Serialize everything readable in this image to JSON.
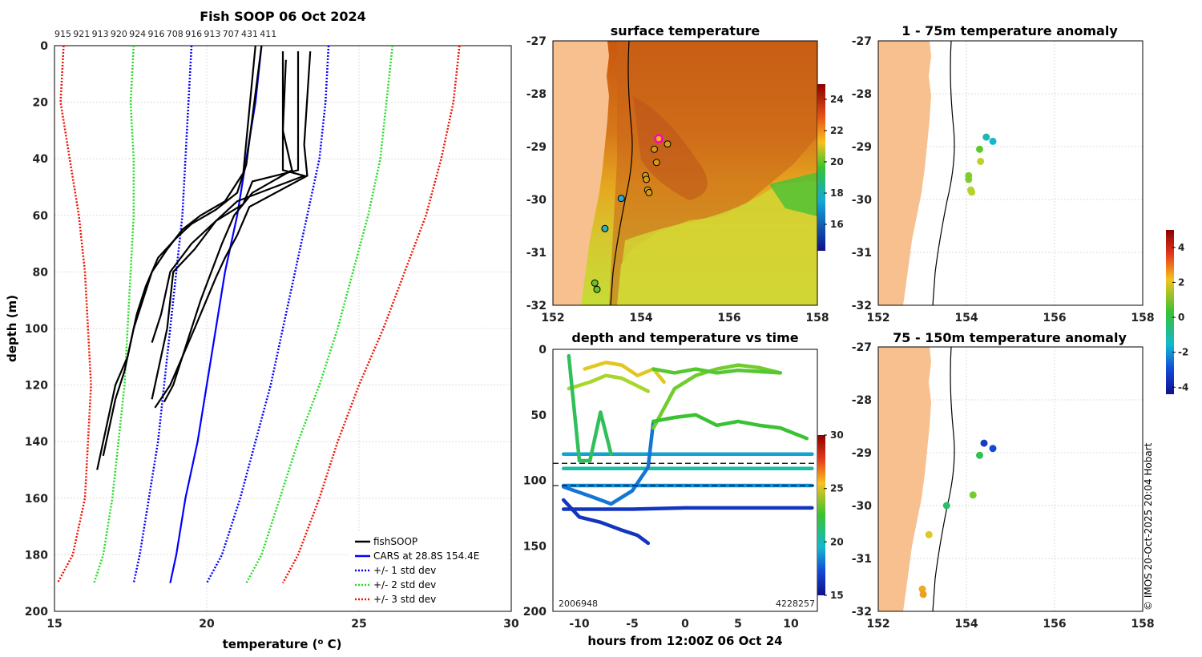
{
  "chart_data": [
    {
      "type": "line",
      "title": "Fish SOOP 06 Oct 2024",
      "xlabel": "temperature (",
      "xlabel_sup": "o",
      "xlabel_end": " C)",
      "ylabel": "depth (m)",
      "xlim": [
        15,
        30
      ],
      "ylim": [
        200,
        0
      ],
      "xticks": [
        "15",
        "20",
        "25",
        "30"
      ],
      "yticks": [
        "0",
        "20",
        "40",
        "60",
        "80",
        "100",
        "120",
        "140",
        "160",
        "180",
        "200"
      ],
      "top_labels": [
        "915",
        "921",
        "913",
        "920",
        "924",
        "916",
        "708",
        "916",
        "913",
        "707",
        "431",
        "411"
      ],
      "legend": [
        "fishSOOP",
        "CARS at 28.8S 154.4E",
        "+/- 1 std dev",
        "+/- 2 std dev",
        "+/- 3 std dev"
      ],
      "series": [
        {
          "name": "CARS mean",
          "depth": [
            0,
            20,
            40,
            60,
            80,
            100,
            120,
            140,
            160,
            180,
            190
          ],
          "temp": [
            21.8,
            21.6,
            21.3,
            21.0,
            20.6,
            20.3,
            20.0,
            19.7,
            19.3,
            19.0,
            18.8
          ]
        },
        {
          "name": "+1 std",
          "depth": [
            0,
            20,
            40,
            60,
            80,
            100,
            120,
            140,
            160,
            180,
            190
          ],
          "temp": [
            24.0,
            23.9,
            23.7,
            23.3,
            22.9,
            22.5,
            22.1,
            21.6,
            21.1,
            20.5,
            20.0
          ]
        },
        {
          "name": "-1 std",
          "depth": [
            0,
            20,
            40,
            60,
            80,
            100,
            120,
            140,
            160,
            180,
            190
          ],
          "temp": [
            19.5,
            19.4,
            19.3,
            19.2,
            19.0,
            18.8,
            18.6,
            18.4,
            18.1,
            17.8,
            17.6
          ]
        },
        {
          "name": "+2 std",
          "depth": [
            0,
            20,
            40,
            60,
            80,
            100,
            120,
            140,
            160,
            180,
            190
          ],
          "temp": [
            26.1,
            25.9,
            25.7,
            25.3,
            24.8,
            24.3,
            23.7,
            23.0,
            22.4,
            21.8,
            21.3
          ]
        },
        {
          "name": "-2 std",
          "depth": [
            0,
            20,
            40,
            60,
            80,
            100,
            120,
            140,
            160,
            180,
            190
          ],
          "temp": [
            17.6,
            17.5,
            17.6,
            17.6,
            17.5,
            17.4,
            17.3,
            17.1,
            16.9,
            16.6,
            16.3
          ]
        },
        {
          "name": "+3 std",
          "depth": [
            0,
            20,
            40,
            60,
            80,
            100,
            120,
            140,
            160,
            180,
            190
          ],
          "temp": [
            28.3,
            28.1,
            27.7,
            27.2,
            26.5,
            25.8,
            25.0,
            24.3,
            23.7,
            23.0,
            22.5
          ]
        },
        {
          "name": "-3 std",
          "depth": [
            0,
            20,
            40,
            60,
            80,
            100,
            120,
            140,
            160,
            180,
            190
          ],
          "temp": [
            15.3,
            15.2,
            15.5,
            15.8,
            16.0,
            16.1,
            16.2,
            16.1,
            16.0,
            15.6,
            15.1
          ]
        }
      ],
      "profiles": [
        {
          "depth": [
            0,
            42,
            52,
            58,
            63,
            68,
            75,
            85,
            95,
            110,
            120,
            130,
            140,
            150
          ],
          "temp": [
            21.8,
            21.3,
            21.0,
            20.3,
            19.5,
            19.0,
            18.4,
            18.0,
            17.7,
            17.4,
            17.0,
            16.8,
            16.6,
            16.4
          ]
        },
        {
          "depth": [
            0,
            45,
            55,
            60,
            65,
            72,
            80,
            90,
            100,
            115,
            125,
            135,
            145
          ],
          "temp": [
            21.6,
            21.2,
            20.6,
            19.8,
            19.2,
            18.7,
            18.2,
            17.9,
            17.6,
            17.3,
            17.0,
            16.8,
            16.6
          ]
        },
        {
          "depth": [
            2,
            44,
            46,
            55,
            60,
            70,
            80,
            95,
            105
          ],
          "temp": [
            22.5,
            22.5,
            23.2,
            21.0,
            20.5,
            19.5,
            18.8,
            18.5,
            18.2
          ]
        },
        {
          "depth": [
            2,
            44,
            48,
            56,
            62,
            72,
            80,
            100,
            115,
            125
          ],
          "temp": [
            23.0,
            23.0,
            21.5,
            21.2,
            20.3,
            19.6,
            18.9,
            18.7,
            18.4,
            18.2
          ]
        },
        {
          "depth": [
            2,
            35,
            46,
            57,
            67,
            75,
            82,
            100,
            120,
            128
          ],
          "temp": [
            23.4,
            23.2,
            23.3,
            21.4,
            21.0,
            20.6,
            20.3,
            19.6,
            18.8,
            18.3
          ]
        },
        {
          "depth": [
            5,
            30,
            44,
            52,
            60,
            70,
            90,
            110,
            120,
            126
          ],
          "temp": [
            22.6,
            22.5,
            22.8,
            21.5,
            20.9,
            20.5,
            19.8,
            19.2,
            18.9,
            18.6
          ]
        }
      ]
    },
    {
      "type": "heatmap",
      "title": "surface temperature",
      "xlim": [
        152,
        158
      ],
      "ylim": [
        -32,
        -27
      ],
      "xticks": [
        "152",
        "154",
        "156",
        "158"
      ],
      "yticks": [
        "-27",
        "-28",
        "-29",
        "-30",
        "-31",
        "-32"
      ],
      "colorbar_ticks": [
        "24",
        "22",
        "20",
        "18",
        "16"
      ],
      "stations": [
        {
          "lon": 154.4,
          "lat": -28.85,
          "color": "#f2ba10",
          "highlight": true
        },
        {
          "lon": 154.6,
          "lat": -28.95,
          "color": "#d79a14"
        },
        {
          "lon": 154.3,
          "lat": -29.05,
          "color": "#d79a14"
        },
        {
          "lon": 154.35,
          "lat": -29.3,
          "color": "#d79a14"
        },
        {
          "lon": 154.1,
          "lat": -29.55,
          "color": "#d79a14"
        },
        {
          "lon": 154.12,
          "lat": -29.62,
          "color": "#d79a14"
        },
        {
          "lon": 154.15,
          "lat": -29.82,
          "color": "#d79a14"
        },
        {
          "lon": 154.18,
          "lat": -29.87,
          "color": "#d79a14"
        },
        {
          "lon": 153.55,
          "lat": -29.98,
          "color": "#2aa8d8"
        },
        {
          "lon": 153.18,
          "lat": -30.55,
          "color": "#35b0b0"
        },
        {
          "lon": 152.95,
          "lat": -31.58,
          "color": "#6ac22a"
        },
        {
          "lon": 153.0,
          "lat": -31.7,
          "color": "#6ac22a"
        }
      ]
    },
    {
      "type": "scatter",
      "title": "1 - 75m temperature anomaly",
      "xlim": [
        152,
        158
      ],
      "ylim": [
        -32,
        -27
      ],
      "xticks": [
        "152",
        "154",
        "156",
        "158"
      ],
      "yticks": [
        "-27",
        "-28",
        "-29",
        "-30",
        "-31",
        "-32"
      ],
      "points": [
        {
          "lon": 154.45,
          "lat": -28.82,
          "value": -1.2
        },
        {
          "lon": 154.6,
          "lat": -28.9,
          "value": -1.5
        },
        {
          "lon": 154.3,
          "lat": -29.05,
          "value": 0.5
        },
        {
          "lon": 154.32,
          "lat": -29.28,
          "value": 1.8
        },
        {
          "lon": 154.05,
          "lat": -29.55,
          "value": 0.9
        },
        {
          "lon": 154.05,
          "lat": -29.62,
          "value": 0.9
        },
        {
          "lon": 154.1,
          "lat": -29.82,
          "value": 1.6
        },
        {
          "lon": 154.12,
          "lat": -29.86,
          "value": 1.6
        }
      ]
    },
    {
      "type": "scatter",
      "title": "75 - 150m temperature anomaly",
      "xlim": [
        152,
        158
      ],
      "ylim": [
        -32,
        -27
      ],
      "xticks": [
        "152",
        "154",
        "156",
        "158"
      ],
      "yticks": [
        "-27",
        "-28",
        "-29",
        "-30",
        "-31",
        "-32"
      ],
      "points": [
        {
          "lon": 154.4,
          "lat": -28.82,
          "value": -3.2
        },
        {
          "lon": 154.6,
          "lat": -28.92,
          "value": -3.0
        },
        {
          "lon": 154.3,
          "lat": -29.05,
          "value": -0.3
        },
        {
          "lon": 154.15,
          "lat": -29.8,
          "value": 0.8
        },
        {
          "lon": 153.55,
          "lat": -30.0,
          "value": -0.5
        },
        {
          "lon": 153.15,
          "lat": -30.55,
          "value": 2.2
        },
        {
          "lon": 153.0,
          "lat": -31.58,
          "value": 3.0
        },
        {
          "lon": 153.02,
          "lat": -31.68,
          "value": 3.2
        }
      ]
    },
    {
      "type": "line",
      "title": "depth and temperature vs time",
      "xlabel": "hours from 12:00Z 06 Oct 24",
      "xlim": [
        -12.5,
        12.5
      ],
      "ylim": [
        200,
        0
      ],
      "xticks": [
        "-10",
        "-5",
        "0",
        "5",
        "10"
      ],
      "yticks": [
        "0",
        "50",
        "100",
        "150",
        "200"
      ],
      "colorbar_ticks": [
        "30",
        "25",
        "20",
        "15"
      ],
      "dashed_depths": [
        87,
        104
      ],
      "bottom_left_label": "2006948",
      "bottom_right_label": "4228257",
      "series": [
        {
          "name": "hz80",
          "hours": [
            -11.5,
            -5,
            0,
            5,
            12
          ],
          "depth": [
            80,
            80,
            80,
            80,
            80
          ],
          "temp": 18.5
        },
        {
          "name": "hz90",
          "hours": [
            -11.5,
            -5,
            0,
            5,
            12
          ],
          "depth": [
            91,
            91,
            91,
            91,
            91
          ],
          "temp": 19.5
        },
        {
          "name": "hz104",
          "hours": [
            -11.5,
            -5,
            0,
            5,
            12
          ],
          "depth": [
            104,
            104,
            104,
            104,
            104
          ],
          "temp": 18.0
        },
        {
          "name": "hz122",
          "hours": [
            -11.5,
            -5,
            0,
            5,
            12
          ],
          "depth": [
            122,
            122,
            121,
            121,
            121
          ],
          "temp": 16.0
        },
        {
          "name": "tr1",
          "hours": [
            -11.5,
            -10,
            -8,
            -6,
            -4.5,
            -3.5
          ],
          "depth": [
            115,
            128,
            132,
            138,
            142,
            148
          ],
          "temp": 16.0
        },
        {
          "name": "tr2",
          "hours": [
            -11.5,
            -9,
            -7,
            -5,
            -3.5,
            -3
          ],
          "depth": [
            105,
            112,
            118,
            108,
            90,
            55
          ],
          "temp": 17.5
        },
        {
          "name": "tr3",
          "hours": [
            -11,
            -9,
            -7.5,
            -6,
            -4.5,
            -3.5
          ],
          "depth": [
            30,
            25,
            20,
            22,
            28,
            32
          ],
          "temp": 23.0
        },
        {
          "name": "tr4",
          "hours": [
            -9.5,
            -7.5,
            -6,
            -4.5,
            -3,
            -2
          ],
          "depth": [
            15,
            10,
            12,
            20,
            15,
            25
          ],
          "temp": 24.5
        },
        {
          "name": "tr5",
          "hours": [
            -3,
            -1,
            1,
            3,
            5,
            7,
            9
          ],
          "depth": [
            60,
            30,
            20,
            15,
            12,
            14,
            18
          ],
          "temp": 22.0
        },
        {
          "name": "tr6",
          "hours": [
            -3,
            -1,
            1,
            3,
            5,
            7,
            9,
            11.5
          ],
          "depth": [
            55,
            52,
            50,
            58,
            55,
            58,
            60,
            68
          ],
          "temp": 21.0
        },
        {
          "name": "tr7",
          "hours": [
            -3,
            -1,
            1,
            3,
            5,
            7,
            9
          ],
          "depth": [
            15,
            18,
            15,
            18,
            16,
            17,
            18
          ],
          "temp": 21.5
        },
        {
          "name": "tr8",
          "hours": [
            -11,
            -10,
            -9,
            -8,
            -7
          ],
          "depth": [
            5,
            85,
            85,
            48,
            80
          ],
          "temp": 20.5
        }
      ]
    }
  ],
  "credit": "© IMOS 20-Oct-2025 20:04 Hobart",
  "colors": {
    "land": "#f8c08e",
    "mean": "#0000ff",
    "std1": "#0000ff",
    "std2": "#22dd22",
    "std3": "#ee1100",
    "profile": "#000000",
    "highlight": "#ff00cc"
  }
}
